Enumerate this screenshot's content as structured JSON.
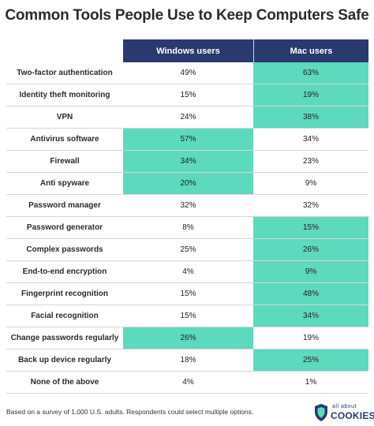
{
  "title": "Common Tools People Use to Keep Computers Safe",
  "columns": [
    "Windows users",
    "Mac users"
  ],
  "colors": {
    "header": "#2a3a6e",
    "highlight": "#5dd9bd"
  },
  "rows": [
    {
      "label": "Two-factor authentication",
      "windows": "49%",
      "mac": "63%",
      "highlight": "mac"
    },
    {
      "label": "Identity theft monitoring",
      "windows": "15%",
      "mac": "19%",
      "highlight": "mac"
    },
    {
      "label": "VPN",
      "windows": "24%",
      "mac": "38%",
      "highlight": "mac"
    },
    {
      "label": "Antivirus software",
      "windows": "57%",
      "mac": "34%",
      "highlight": "windows"
    },
    {
      "label": "Firewall",
      "windows": "34%",
      "mac": "23%",
      "highlight": "windows"
    },
    {
      "label": "Anti spyware",
      "windows": "20%",
      "mac": "9%",
      "highlight": "windows"
    },
    {
      "label": "Password manager",
      "windows": "32%",
      "mac": "32%",
      "highlight": "none"
    },
    {
      "label": "Password generator",
      "windows": "8%",
      "mac": "15%",
      "highlight": "mac"
    },
    {
      "label": "Complex passwords",
      "windows": "25%",
      "mac": "26%",
      "highlight": "mac"
    },
    {
      "label": "End-to-end encryption",
      "windows": "4%",
      "mac": "9%",
      "highlight": "mac"
    },
    {
      "label": "Fingerprint recognition",
      "windows": "15%",
      "mac": "48%",
      "highlight": "mac"
    },
    {
      "label": "Facial recognition",
      "windows": "15%",
      "mac": "34%",
      "highlight": "mac"
    },
    {
      "label": "Change passwords regularly",
      "windows": "26%",
      "mac": "19%",
      "highlight": "windows"
    },
    {
      "label": "Back up device regularly",
      "windows": "18%",
      "mac": "25%",
      "highlight": "mac"
    },
    {
      "label": "None of the above",
      "windows": "4%",
      "mac": "1%",
      "highlight": "none"
    }
  ],
  "chart_data": {
    "type": "table",
    "title": "Common Tools People Use to Keep Computers Safe",
    "categories": [
      "Two-factor authentication",
      "Identity theft monitoring",
      "VPN",
      "Antivirus software",
      "Firewall",
      "Anti spyware",
      "Password manager",
      "Password generator",
      "Complex passwords",
      "End-to-end encryption",
      "Fingerprint recognition",
      "Facial recognition",
      "Change passwords regularly",
      "Back up device regularly",
      "None of the above"
    ],
    "series": [
      {
        "name": "Windows users",
        "values": [
          49,
          15,
          24,
          57,
          34,
          20,
          32,
          8,
          25,
          4,
          15,
          15,
          26,
          18,
          4
        ]
      },
      {
        "name": "Mac users",
        "values": [
          63,
          19,
          38,
          34,
          23,
          9,
          32,
          15,
          26,
          9,
          48,
          34,
          19,
          25,
          1
        ]
      }
    ]
  },
  "footnote": "Based on a survey of 1,000 U.S. adults. Respondents could select multiple options.",
  "logo": {
    "small": "all about",
    "big": "COOKIES",
    "icon": "shield-icon"
  }
}
